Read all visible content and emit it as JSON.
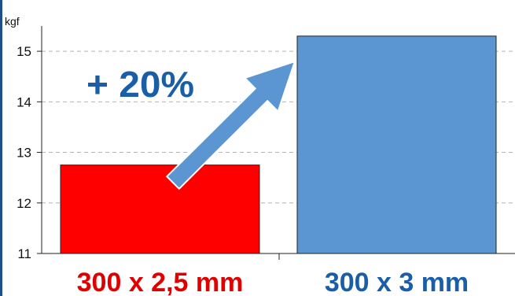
{
  "chart_data": {
    "type": "bar",
    "categories": [
      "300 x 2,5 mm",
      "300 x 3 mm"
    ],
    "values": [
      12.75,
      15.3
    ],
    "bar_colors": [
      "#ff0000",
      "#5b96d2"
    ],
    "category_label_colors": [
      "#e00000",
      "#1a5ea8"
    ],
    "ylabel": "kgf",
    "ylim": [
      11,
      15.5
    ],
    "yticks": [
      "11",
      "12",
      "13",
      "14",
      "15"
    ],
    "grid": true,
    "annotation": {
      "text": "+ 20%",
      "color": "#1a5ea8",
      "arrow_color": "#5b96d2"
    }
  }
}
